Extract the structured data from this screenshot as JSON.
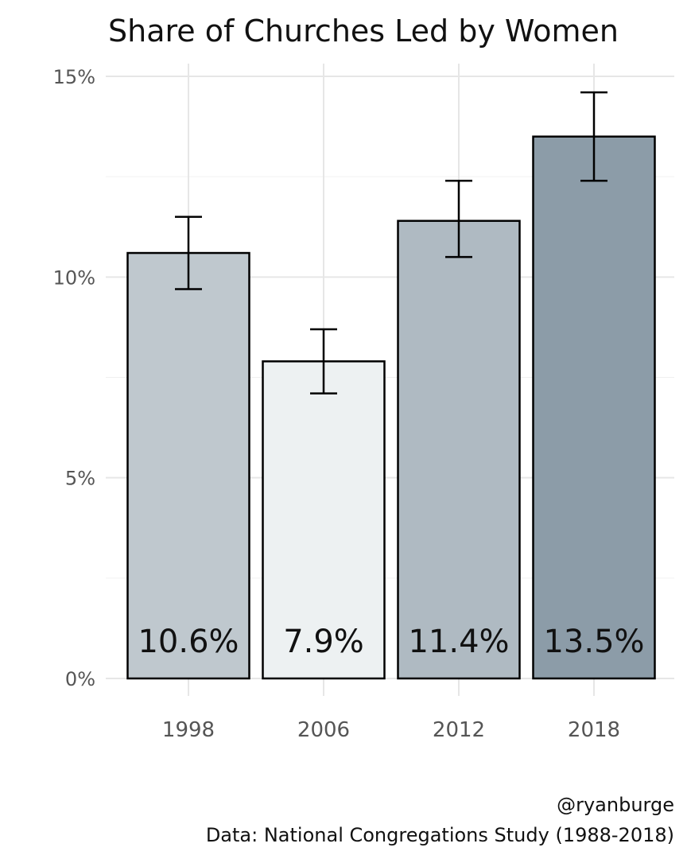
{
  "chart_data": {
    "type": "bar",
    "title": "Share of Churches Led by Women",
    "categories": [
      "1998",
      "2006",
      "2012",
      "2018"
    ],
    "values": [
      10.6,
      7.9,
      11.4,
      13.5
    ],
    "value_labels": [
      "10.6%",
      "7.9%",
      "11.4%",
      "13.5%"
    ],
    "error_low": [
      9.7,
      7.1,
      10.5,
      12.4
    ],
    "error_high": [
      11.5,
      8.7,
      12.4,
      14.6
    ],
    "bar_colors": [
      "#bfc8ce",
      "#edf1f2",
      "#afbac2",
      "#8c9ca8"
    ],
    "ylim": [
      0,
      15
    ],
    "yticks": [
      0,
      5,
      10,
      15
    ],
    "ytick_labels": [
      "0%",
      "5%",
      "10%",
      "15%"
    ],
    "xlabel": "",
    "ylabel": "",
    "grid": true,
    "legend": "none"
  },
  "caption": {
    "line1": "@ryanburge",
    "line2": "Data: National Congregations Study (1988-2018)"
  }
}
